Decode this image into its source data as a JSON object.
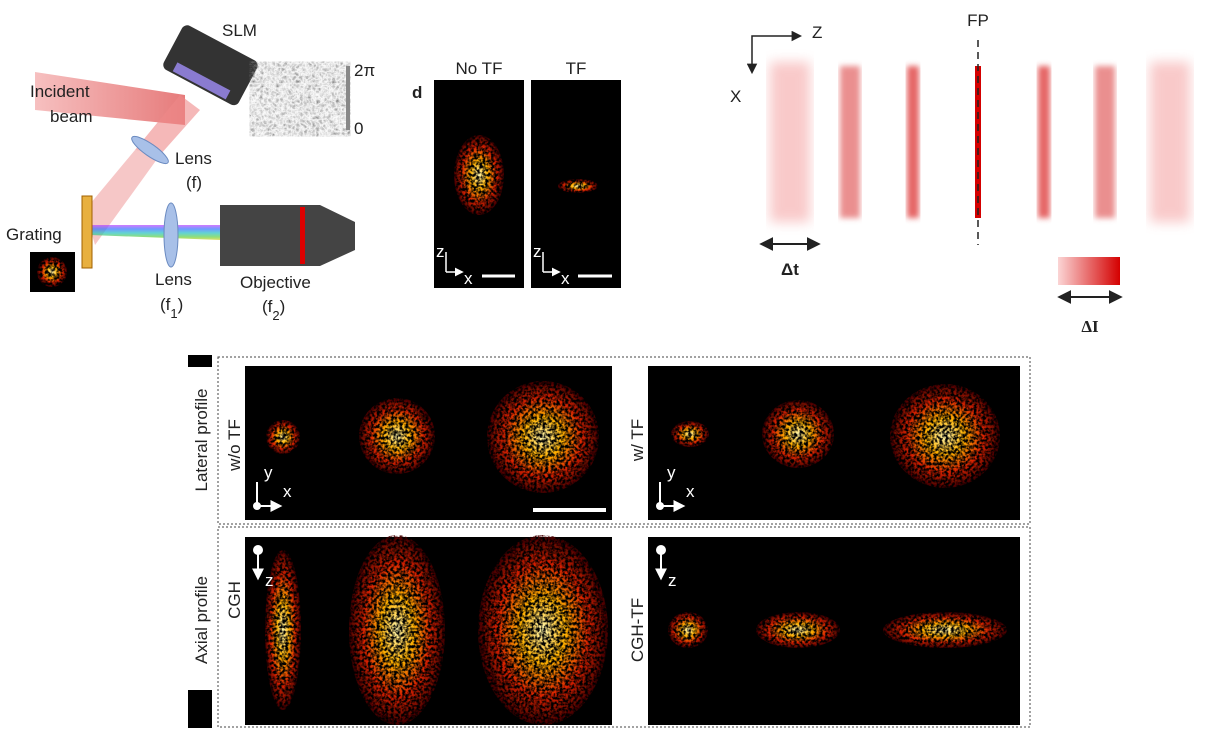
{
  "setup": {
    "slm": "SLM",
    "phase_max": "2π",
    "phase_min": "0",
    "incident": [
      "Incident",
      "beam"
    ],
    "lens1": [
      "Lens",
      "(f)"
    ],
    "grating": "Grating",
    "lens2": {
      "name": "Lens",
      "label": [
        "(f",
        "1",
        ")"
      ]
    },
    "objective": {
      "name": "Objective",
      "label": [
        "(f",
        "2",
        ")"
      ]
    }
  },
  "panel_d": {
    "letter": "d",
    "panels": [
      {
        "title": "No TF",
        "axes": [
          "z",
          "x"
        ]
      },
      {
        "title": "TF",
        "axes": [
          "z",
          "x"
        ]
      }
    ]
  },
  "schematic": {
    "z": "Z",
    "x": "X",
    "fp": "FP",
    "dt": "Δt",
    "di": "ΔI"
  },
  "profiles": {
    "rows": [
      {
        "label": "Lateral profile",
        "left": {
          "label": "w/o TF",
          "axes": [
            "y",
            "x"
          ]
        },
        "right": {
          "label": "w/ TF",
          "axes": [
            "y",
            "x"
          ]
        }
      },
      {
        "label": "Axial profile",
        "left": {
          "label": "CGH",
          "axes": [
            "z"
          ]
        },
        "right": {
          "label": "CGH-TF",
          "axes": [
            "z"
          ]
        }
      }
    ]
  }
}
